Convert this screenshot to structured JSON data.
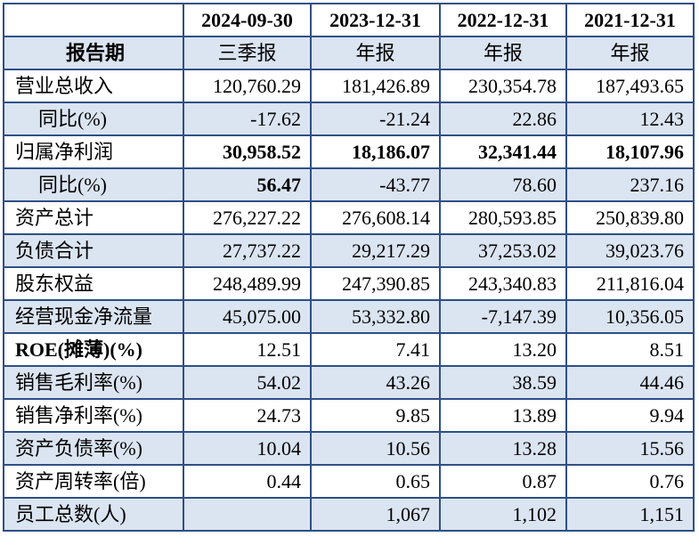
{
  "header": {
    "periods": [
      "2024-09-30",
      "2023-12-31",
      "2022-12-31",
      "2021-12-31"
    ],
    "report_label": "报告期",
    "report_types": [
      "三季报",
      "年报",
      "年报",
      "年报"
    ]
  },
  "rows": [
    {
      "label": "营业总收入",
      "values": [
        "120,760.29",
        "181,426.89",
        "230,354.78",
        "187,493.65"
      ]
    },
    {
      "label": "同比(%)",
      "values": [
        "-17.62",
        "-21.24",
        "22.86",
        "12.43"
      ]
    },
    {
      "label": "归属净利润",
      "values": [
        "30,958.52",
        "18,186.07",
        "32,341.44",
        "18,107.96"
      ]
    },
    {
      "label": "同比(%)",
      "values": [
        "56.47",
        "-43.77",
        "78.60",
        "237.16"
      ]
    },
    {
      "label": "资产总计",
      "values": [
        "276,227.22",
        "276,608.14",
        "280,593.85",
        "250,839.80"
      ]
    },
    {
      "label": "负债合计",
      "values": [
        "27,737.22",
        "29,217.29",
        "37,253.02",
        "39,023.76"
      ]
    },
    {
      "label": "股东权益",
      "values": [
        "248,489.99",
        "247,390.85",
        "243,340.83",
        "211,816.04"
      ]
    },
    {
      "label": "经营现金净流量",
      "values": [
        "45,075.00",
        "53,332.80",
        "-7,147.39",
        "10,356.05"
      ]
    },
    {
      "label": "ROE(摊薄)(%)",
      "values": [
        "12.51",
        "7.41",
        "13.20",
        "8.51"
      ]
    },
    {
      "label": "销售毛利率(%)",
      "values": [
        "54.02",
        "43.26",
        "38.59",
        "44.46"
      ]
    },
    {
      "label": "销售净利率(%)",
      "values": [
        "24.73",
        "9.85",
        "13.89",
        "9.94"
      ]
    },
    {
      "label": "资产负债率(%)",
      "values": [
        "10.04",
        "10.56",
        "13.28",
        "15.56"
      ]
    },
    {
      "label": "资产周转率(倍)",
      "values": [
        "0.44",
        "0.65",
        "0.87",
        "0.76"
      ]
    },
    {
      "label": "员工总数(人)",
      "values": [
        "",
        "1,067",
        "1,102",
        "1,151"
      ]
    }
  ],
  "colors": {
    "border": "#2e4f86",
    "shade": "#dbe4f1"
  }
}
